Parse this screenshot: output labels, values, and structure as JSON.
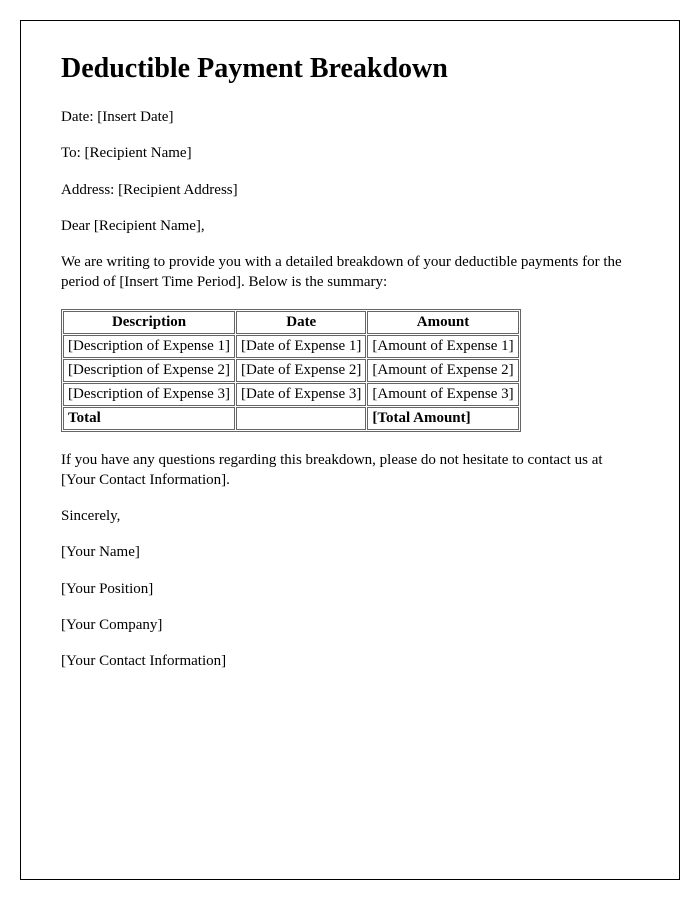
{
  "title": "Deductible Payment Breakdown",
  "meta": {
    "date_label": "Date: [Insert Date]",
    "to_label": "To: [Recipient Name]",
    "address_label": "Address: [Recipient Address]",
    "greeting": "Dear [Recipient Name],"
  },
  "intro": "We are writing to provide you with a detailed breakdown of your deductible payments for the period of [Insert Time Period]. Below is the summary:",
  "table": {
    "columns": [
      "Description",
      "Date",
      "Amount"
    ],
    "rows": [
      [
        "[Description of Expense 1]",
        "[Date of Expense 1]",
        "[Amount of Expense 1]"
      ],
      [
        "[Description of Expense 2]",
        "[Date of Expense 2]",
        "[Amount of Expense 2]"
      ],
      [
        "[Description of Expense 3]",
        "[Date of Expense 3]",
        "[Amount of Expense 3]"
      ]
    ],
    "total_label": "Total",
    "total_value": "[Total Amount]"
  },
  "outro": "If you have any questions regarding this breakdown, please do not hesitate to contact us at [Your Contact Information].",
  "signoff": {
    "sincerely": "Sincerely,",
    "name": "[Your Name]",
    "position": "[Your Position]",
    "company": "[Your Company]",
    "contact": "[Your Contact Information]"
  },
  "styling": {
    "font_family": "Times New Roman",
    "title_fontsize": 28,
    "body_fontsize": 15,
    "border_color": "#666666",
    "page_border_color": "#000000",
    "background_color": "#ffffff",
    "text_color": "#000000"
  }
}
